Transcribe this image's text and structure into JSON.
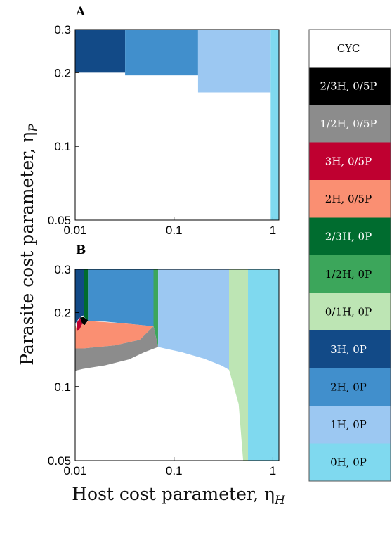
{
  "figure": {
    "y_label": "Parasite cost parameter, η",
    "y_label_sub": "P",
    "x_label": "Host cost parameter, η",
    "x_label_sub": "H"
  },
  "legend": {
    "items": [
      {
        "label": "CYC",
        "color": "#ffffff",
        "text_color": "#000000"
      },
      {
        "label": "2/3H, 0/5P",
        "color": "#000000",
        "text_color": "#ffffff"
      },
      {
        "label": "1/2H, 0/5P",
        "color": "#8c8c8c",
        "text_color": "#ffffff"
      },
      {
        "label": "3H, 0/5P",
        "color": "#bf0030",
        "text_color": "#ffffff"
      },
      {
        "label": "2H, 0/5P",
        "color": "#fa8f72",
        "text_color": "#000000"
      },
      {
        "label": "2/3H, 0P",
        "color": "#006c2f",
        "text_color": "#ffffff"
      },
      {
        "label": "1/2H, 0P",
        "color": "#3ca65b",
        "text_color": "#000000"
      },
      {
        "label": "0/1H, 0P",
        "color": "#bde5b4",
        "text_color": "#000000"
      },
      {
        "label": "3H, 0P",
        "color": "#124a87",
        "text_color": "#ffffff"
      },
      {
        "label": "2H, 0P",
        "color": "#418fcc",
        "text_color": "#000000"
      },
      {
        "label": "1H, 0P",
        "color": "#9cc8f2",
        "text_color": "#000000"
      },
      {
        "label": "0H, 0P",
        "color": "#7fd9ef",
        "text_color": "#000000"
      }
    ]
  },
  "chart_data": [
    {
      "panel": "A",
      "type": "heatmap",
      "x_scale": "log",
      "y_scale": "log",
      "xlim": [
        0.01,
        1.15
      ],
      "ylim": [
        0.05,
        0.3
      ],
      "x_ticks": [
        "0.01",
        "0.1",
        "1"
      ],
      "x_tick_values": [
        0.01,
        0.1,
        1
      ],
      "y_ticks": [
        "0.05",
        "0.1",
        "0.2",
        "0.3"
      ],
      "y_tick_values": [
        0.05,
        0.1,
        0.2,
        0.3
      ],
      "regions": [
        {
          "label": "3H, 0P",
          "x": [
            0.01,
            0.032
          ],
          "y": [
            0.2,
            0.3
          ]
        },
        {
          "label": "2H, 0P",
          "x": [
            0.032,
            0.175
          ],
          "y": [
            0.195,
            0.3
          ]
        },
        {
          "label": "1H, 0P",
          "x": [
            0.175,
            0.95
          ],
          "y": [
            0.166,
            0.3
          ]
        },
        {
          "label": "0H, 0P",
          "x": [
            0.95,
            1.15
          ],
          "y": [
            0.05,
            0.3
          ]
        }
      ]
    },
    {
      "panel": "B",
      "type": "heatmap",
      "x_scale": "log",
      "y_scale": "log",
      "xlim": [
        0.01,
        1.15
      ],
      "ylim": [
        0.05,
        0.3
      ],
      "x_ticks": [
        "0.01",
        "0.1",
        "1"
      ],
      "x_tick_values": [
        0.01,
        0.1,
        1
      ],
      "y_ticks": [
        "0.05",
        "0.1",
        "0.2",
        "0.3"
      ],
      "y_tick_values": [
        0.05,
        0.1,
        0.2,
        0.3
      ],
      "regions": [
        {
          "label": "3H, 0P",
          "polygon": [
            [
              0.01,
              0.3
            ],
            [
              0.0122,
              0.3
            ],
            [
              0.0122,
              0.195
            ],
            [
              0.011,
              0.19
            ],
            [
              0.01,
              0.18
            ]
          ]
        },
        {
          "label": "2/3H, 0P",
          "polygon": [
            [
              0.0122,
              0.3
            ],
            [
              0.0135,
              0.3
            ],
            [
              0.0135,
              0.185
            ],
            [
              0.0122,
              0.193
            ]
          ]
        },
        {
          "label": "2H, 0P",
          "polygon": [
            [
              0.0135,
              0.3
            ],
            [
              0.062,
              0.3
            ],
            [
              0.062,
              0.176
            ],
            [
              0.035,
              0.18
            ],
            [
              0.02,
              0.184
            ],
            [
              0.0135,
              0.185
            ]
          ]
        },
        {
          "label": "1/2H, 0P",
          "polygon": [
            [
              0.062,
              0.3
            ],
            [
              0.069,
              0.3
            ],
            [
              0.069,
              0.145
            ],
            [
              0.062,
              0.176
            ]
          ]
        },
        {
          "label": "1H, 0P",
          "polygon": [
            [
              0.069,
              0.3
            ],
            [
              0.36,
              0.3
            ],
            [
              0.36,
              0.117
            ],
            [
              0.3,
              0.122
            ],
            [
              0.2,
              0.13
            ],
            [
              0.12,
              0.138
            ],
            [
              0.08,
              0.143
            ],
            [
              0.069,
              0.145
            ]
          ]
        },
        {
          "label": "0/1H, 0P",
          "polygon": [
            [
              0.36,
              0.3
            ],
            [
              0.56,
              0.3
            ],
            [
              0.56,
              0.05
            ],
            [
              0.5,
              0.05
            ],
            [
              0.45,
              0.085
            ],
            [
              0.36,
              0.117
            ]
          ]
        },
        {
          "label": "0H, 0P",
          "polygon": [
            [
              0.56,
              0.3
            ],
            [
              1.15,
              0.3
            ],
            [
              1.15,
              0.05
            ],
            [
              0.56,
              0.05
            ]
          ]
        },
        {
          "label": "3H, 0/5P",
          "polygon": [
            [
              0.0103,
              0.181
            ],
            [
              0.0112,
              0.191
            ],
            [
              0.0118,
              0.18
            ],
            [
              0.0112,
              0.172
            ],
            [
              0.0105,
              0.168
            ]
          ]
        },
        {
          "label": "2/3H, 0/5P",
          "polygon": [
            [
              0.0112,
              0.191
            ],
            [
              0.0122,
              0.192
            ],
            [
              0.0135,
              0.186
            ],
            [
              0.0125,
              0.178
            ],
            [
              0.0118,
              0.18
            ]
          ]
        },
        {
          "label": "2H, 0/5P",
          "polygon": [
            [
              0.01,
              0.18
            ],
            [
              0.0105,
              0.168
            ],
            [
              0.0112,
              0.172
            ],
            [
              0.0118,
              0.18
            ],
            [
              0.0125,
              0.178
            ],
            [
              0.0135,
              0.185
            ],
            [
              0.02,
              0.183
            ],
            [
              0.035,
              0.18
            ],
            [
              0.062,
              0.176
            ],
            [
              0.045,
              0.155
            ],
            [
              0.025,
              0.147
            ],
            [
              0.012,
              0.143
            ],
            [
              0.01,
              0.143
            ]
          ]
        },
        {
          "label": "1/2H, 0/5P",
          "polygon": [
            [
              0.01,
              0.143
            ],
            [
              0.012,
              0.143
            ],
            [
              0.025,
              0.147
            ],
            [
              0.045,
              0.155
            ],
            [
              0.062,
              0.176
            ],
            [
              0.069,
              0.145
            ],
            [
              0.05,
              0.138
            ],
            [
              0.035,
              0.129
            ],
            [
              0.02,
              0.122
            ],
            [
              0.012,
              0.118
            ],
            [
              0.01,
              0.116
            ]
          ]
        }
      ]
    }
  ]
}
